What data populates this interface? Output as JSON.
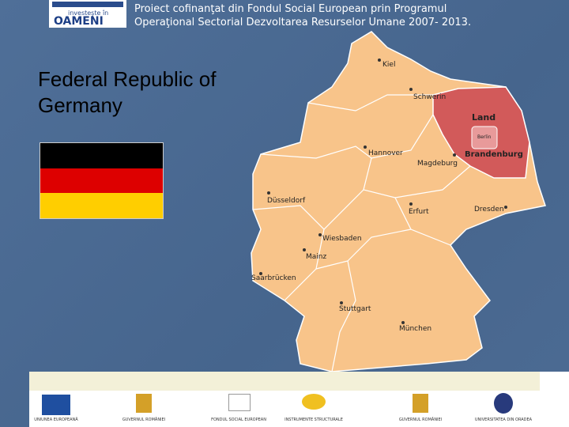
{
  "header": {
    "logo_line1": "investeşte în",
    "logo_line2": "OAMENI",
    "text_line1": "Proiect cofinanţat din Fondul Social European prin Programul",
    "text_line2": "Operaţional Sectorial Dezvoltarea Resurselor Umane 2007- 2013."
  },
  "title_line1": "Federal Republic of",
  "title_line2": "Germany",
  "map": {
    "labels": [
      "Kiel",
      "Schwerin",
      "Land",
      "Berlin",
      "Brandenburg",
      "Hannover",
      "Magdeburg",
      "Düsseldorf",
      "Erfurt",
      "Dresden",
      "Wiesbaden",
      "Mainz",
      "Saarbrücken",
      "Stuttgart",
      "München"
    ]
  },
  "footer": {
    "captions": [
      "UNIUNEA EUROPEANĂ",
      "GUVERNUL ROMÂNIEI",
      "FONDUL SOCIAL EUROPEAN",
      "INSTRUMENTE STRUCTURALE",
      "GUVERNUL ROMÂNIEI",
      "UNIVERSITATEA DIN ORADEA"
    ]
  }
}
